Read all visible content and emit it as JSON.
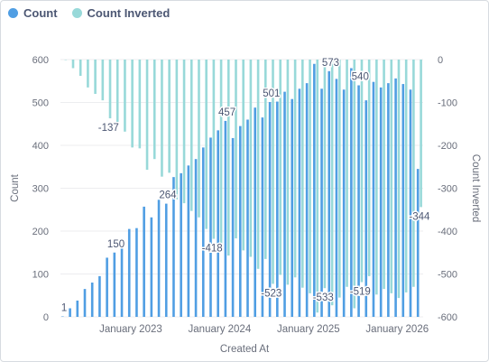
{
  "colors": {
    "count": "#509ee3",
    "count_inverted": "#98d9d9",
    "axis_text": "#696e7b",
    "label_text": "#4c5773",
    "grid": "#ecedef"
  },
  "legend": {
    "count": "Count",
    "count_inverted": "Count Inverted"
  },
  "chart_data": {
    "type": "bar",
    "xlabel": "Created At",
    "ylabel_left": "Count",
    "ylabel_right": "Count Inverted",
    "ylim_left": [
      0,
      600
    ],
    "ylim_right": [
      -600,
      0
    ],
    "yticks_left": [
      "0",
      "100",
      "200",
      "300",
      "400",
      "500",
      "600"
    ],
    "yticks_right": [
      "-600",
      "-500",
      "-400",
      "-300",
      "-200",
      "-100",
      "0"
    ],
    "xticks": [
      {
        "label": "January 2023",
        "index": 9
      },
      {
        "label": "January 2024",
        "index": 21
      },
      {
        "label": "January 2025",
        "index": 33
      },
      {
        "label": "January 2026",
        "index": 45
      }
    ],
    "grid": true,
    "legend_position": "top-left",
    "series": [
      {
        "name": "Count",
        "axis": "left",
        "values": [
          1,
          20,
          38,
          65,
          80,
          95,
          138,
          150,
          168,
          205,
          207,
          257,
          232,
          273,
          264,
          326,
          335,
          353,
          368,
          395,
          418,
          435,
          457,
          417,
          445,
          460,
          488,
          465,
          501,
          502,
          525,
          508,
          532,
          545,
          590,
          532,
          573,
          555,
          530,
          580,
          540,
          505,
          548,
          535,
          545,
          556,
          543,
          530,
          345
        ]
      },
      {
        "name": "Count Inverted",
        "axis": "right",
        "values": [
          -1,
          -20,
          -38,
          -65,
          -80,
          -95,
          -137,
          -150,
          -168,
          -205,
          -207,
          -257,
          -232,
          -273,
          -264,
          -326,
          -335,
          -353,
          -368,
          -395,
          -418,
          -435,
          -457,
          -417,
          -445,
          -460,
          -488,
          -465,
          -523,
          -502,
          -525,
          -508,
          -532,
          -545,
          -590,
          -533,
          -573,
          -555,
          -530,
          -580,
          -519,
          -505,
          -548,
          -535,
          -545,
          -556,
          -543,
          -530,
          -344
        ]
      }
    ],
    "data_labels": [
      {
        "series": 0,
        "index": 0,
        "text": "1"
      },
      {
        "series": 0,
        "index": 7,
        "text": "150"
      },
      {
        "series": 0,
        "index": 14,
        "text": "264"
      },
      {
        "series": 0,
        "index": 22,
        "text": "457"
      },
      {
        "series": 0,
        "index": 28,
        "text": "501"
      },
      {
        "series": 0,
        "index": 36,
        "text": "573"
      },
      {
        "series": 0,
        "index": 40,
        "text": "540"
      },
      {
        "series": 1,
        "index": 6,
        "text": "-137"
      },
      {
        "series": 1,
        "index": 20,
        "text": "-418"
      },
      {
        "series": 1,
        "index": 28,
        "text": "-523"
      },
      {
        "series": 1,
        "index": 35,
        "text": "-533"
      },
      {
        "series": 1,
        "index": 40,
        "text": "-519"
      },
      {
        "series": 1,
        "index": 48,
        "text": "-344"
      }
    ]
  }
}
